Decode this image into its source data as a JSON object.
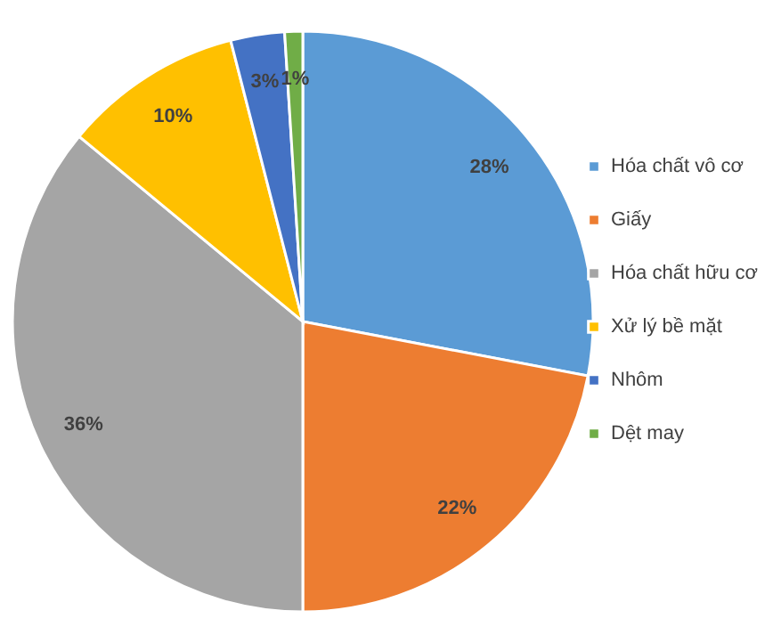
{
  "chart_data": {
    "type": "pie",
    "categories": [
      "Hóa chất vô cơ",
      "Giấy",
      "Hóa chất hữu cơ",
      "Xử lý bề mặt",
      "Nhôm",
      "Dệt may"
    ],
    "values": [
      28,
      22,
      36,
      10,
      3,
      1
    ],
    "colors": [
      "#5b9bd5",
      "#ed7d31",
      "#a5a5a5",
      "#ffc000",
      "#4472c4",
      "#70ad47"
    ],
    "value_labels": [
      "28%",
      "22%",
      "36%",
      "10%",
      "3%",
      "1%"
    ],
    "legend": "right"
  }
}
